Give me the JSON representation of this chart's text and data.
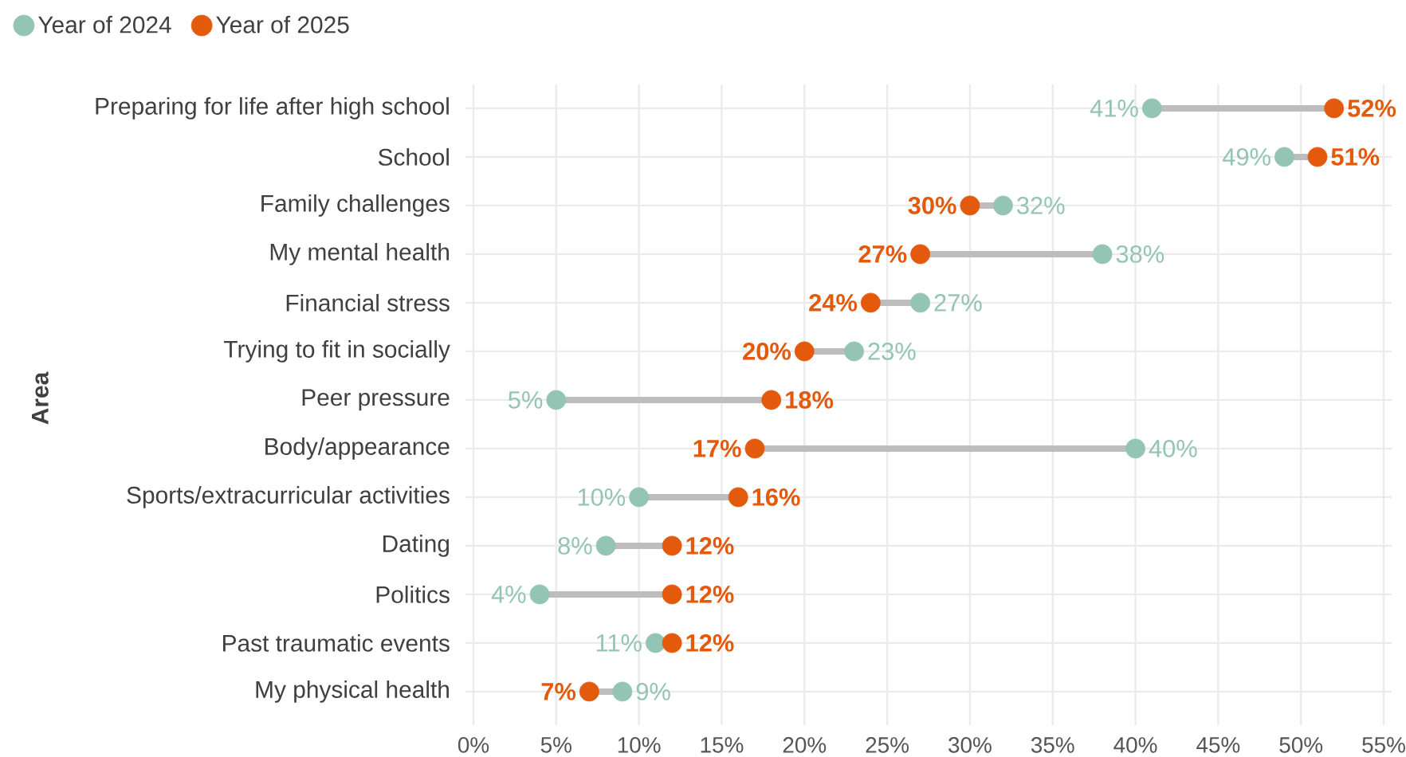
{
  "chart_data": {
    "type": "scatter",
    "orientation": "horizontal",
    "ylabel": "Area",
    "categories": [
      "Preparing for life after high school",
      "School",
      "Family challenges",
      "My mental health",
      "Financial stress",
      "Trying to fit in socially",
      "Peer pressure",
      "Body/appearance",
      "Sports/extracurricular activities",
      "Dating",
      "Politics",
      "Past traumatic events",
      "My physical health"
    ],
    "series": [
      {
        "name": "Year of 2024",
        "color": "#94c4b4",
        "values": [
          41,
          49,
          32,
          38,
          27,
          23,
          5,
          40,
          10,
          8,
          4,
          11,
          9
        ],
        "value_labels": [
          "41%",
          "49%",
          "32%",
          "38%",
          "27%",
          "23%",
          "5%",
          "40%",
          "10%",
          "8%",
          "4%",
          "11%",
          "9%"
        ]
      },
      {
        "name": "Year of 2025",
        "color": "#e35a0c",
        "values": [
          52,
          51,
          30,
          27,
          24,
          20,
          18,
          17,
          16,
          12,
          12,
          12,
          7
        ],
        "value_labels": [
          "52%",
          "51%",
          "30%",
          "27%",
          "24%",
          "20%",
          "18%",
          "17%",
          "16%",
          "12%",
          "12%",
          "12%",
          "7%"
        ]
      }
    ],
    "xlim": [
      0,
      55
    ],
    "xticks": [
      {
        "value": 0,
        "label": "0%"
      },
      {
        "value": 5,
        "label": "5%"
      },
      {
        "value": 10,
        "label": "10%"
      },
      {
        "value": 15,
        "label": "15%"
      },
      {
        "value": 20,
        "label": "20%"
      },
      {
        "value": 25,
        "label": "25%"
      },
      {
        "value": 30,
        "label": "30%"
      },
      {
        "value": 35,
        "label": "35%"
      },
      {
        "value": 40,
        "label": "40%"
      },
      {
        "value": 45,
        "label": "45%"
      },
      {
        "value": 50,
        "label": "50%"
      },
      {
        "value": 55,
        "label": "55%"
      }
    ],
    "grid": true,
    "legend": "top left",
    "marker": "circle"
  }
}
